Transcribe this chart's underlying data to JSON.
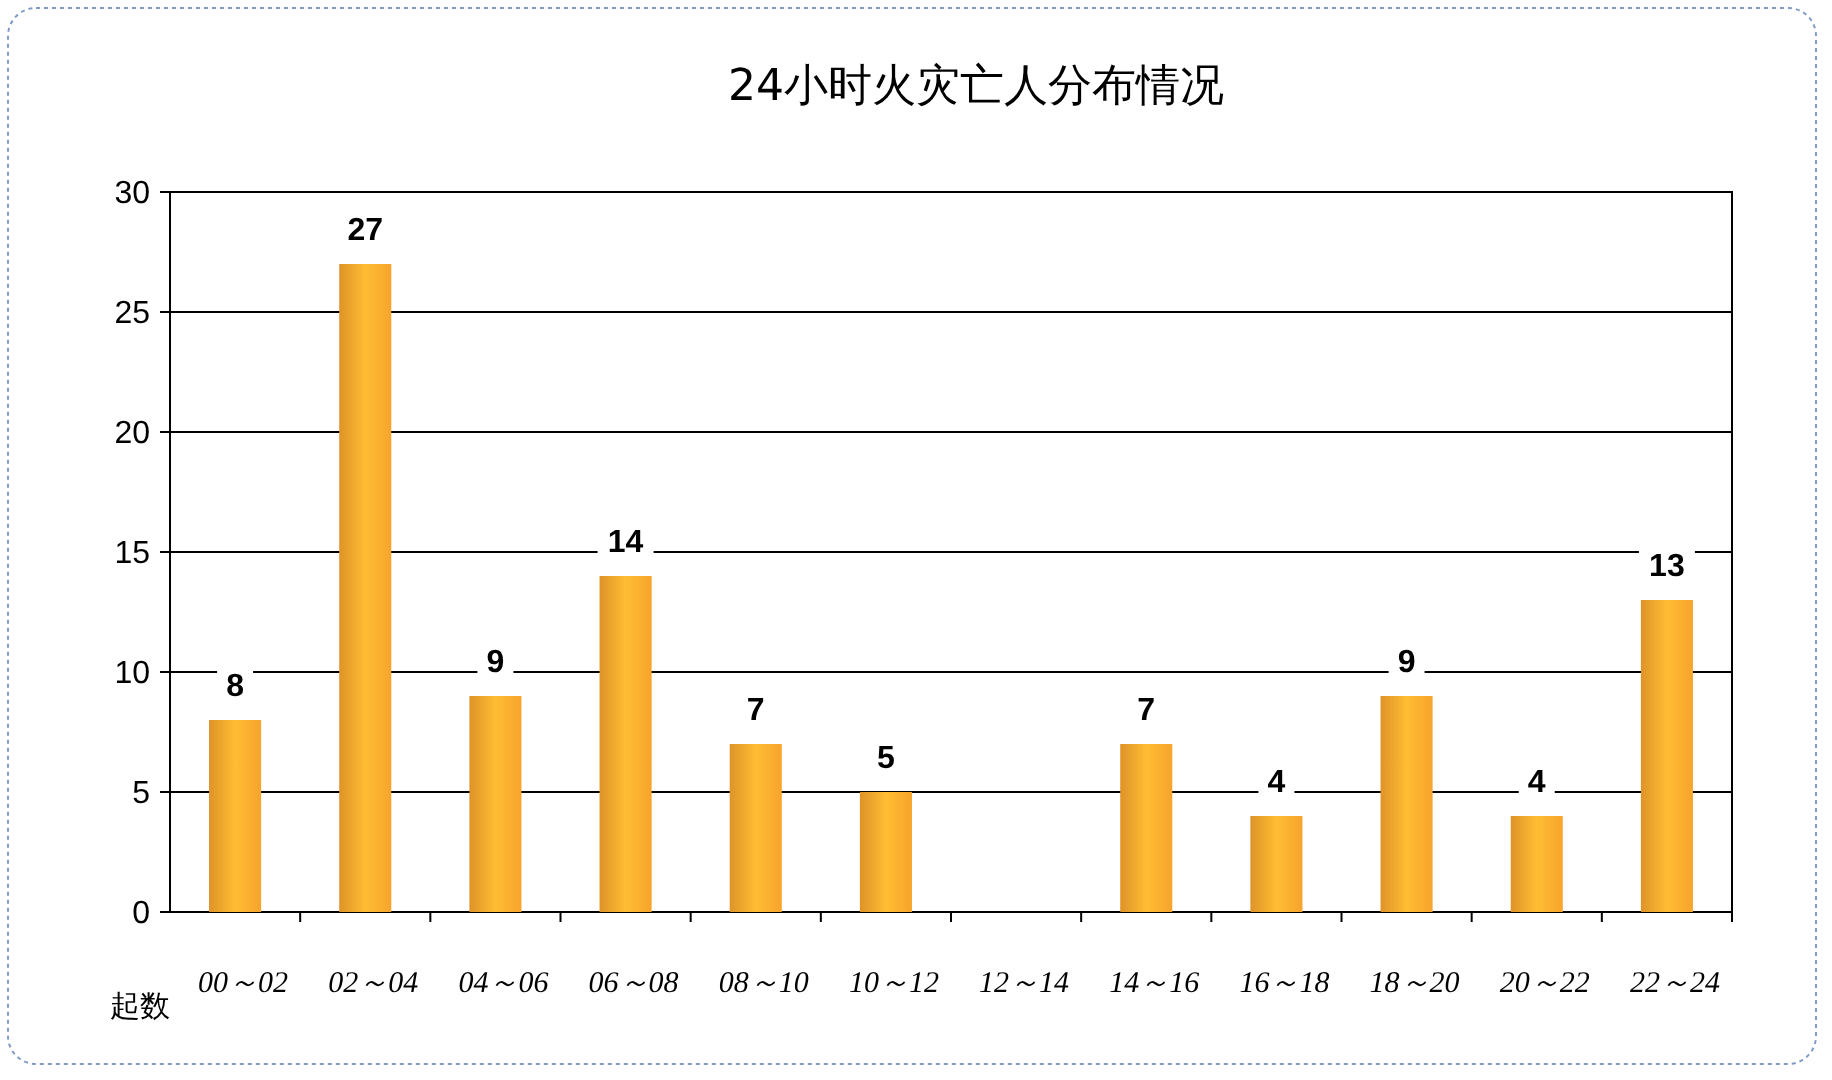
{
  "chart_data": {
    "type": "bar",
    "title": "24小时火灾亡人分布情况",
    "ylabel": "起数",
    "categories": [
      "00～02",
      "02～04",
      "04～06",
      "06～08",
      "08～10",
      "10～12",
      "12～14",
      "14～16",
      "16～18",
      "18～20",
      "20～22",
      "22～24"
    ],
    "values": [
      8,
      27,
      9,
      14,
      7,
      5,
      0,
      7,
      4,
      9,
      4,
      13
    ],
    "value_labels": [
      "8",
      "27",
      "9",
      "14",
      "7",
      "5",
      null,
      "7",
      "4",
      "9",
      "4",
      "13"
    ],
    "color": "#f7a42c",
    "ylim": [
      0,
      30
    ],
    "yticks": [
      0,
      5,
      10,
      15,
      20,
      25,
      30
    ],
    "grid": "y"
  }
}
